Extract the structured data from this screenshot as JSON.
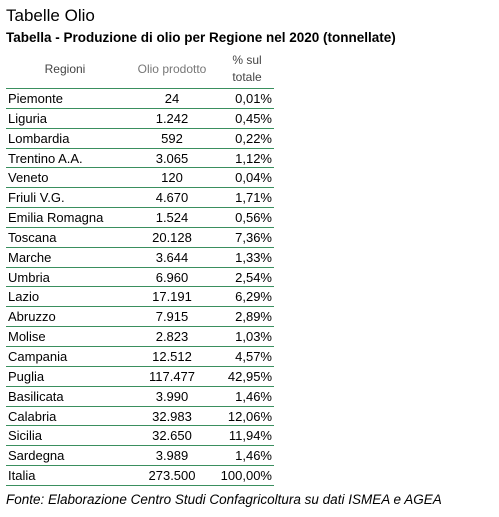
{
  "page_title": "Tabelle Olio",
  "table_caption": "Tabella - Produzione di olio per Regione nel 2020 (tonnellate)",
  "headers": {
    "region": "Regioni",
    "oil": "Olio prodotto",
    "pct_line1": "% sul",
    "pct_line2": "totale"
  },
  "rows": [
    {
      "region": "Piemonte",
      "oil": "24",
      "pct": "0,01%"
    },
    {
      "region": "Liguria",
      "oil": "1.242",
      "pct": "0,45%"
    },
    {
      "region": "Lombardia",
      "oil": "592",
      "pct": "0,22%"
    },
    {
      "region": "Trentino A.A.",
      "oil": "3.065",
      "pct": "1,12%"
    },
    {
      "region": "Veneto",
      "oil": "120",
      "pct": "0,04%"
    },
    {
      "region": "Friuli V.G.",
      "oil": "4.670",
      "pct": "1,71%"
    },
    {
      "region": "Emilia Romagna",
      "oil": "1.524",
      "pct": "0,56%"
    },
    {
      "region": "Toscana",
      "oil": "20.128",
      "pct": "7,36%"
    },
    {
      "region": "Marche",
      "oil": "3.644",
      "pct": "1,33%"
    },
    {
      "region": "Umbria",
      "oil": "6.960",
      "pct": "2,54%"
    },
    {
      "region": "Lazio",
      "oil": "17.191",
      "pct": "6,29%"
    },
    {
      "region": "Abruzzo",
      "oil": "7.915",
      "pct": "2,89%"
    },
    {
      "region": "Molise",
      "oil": "2.823",
      "pct": "1,03%"
    },
    {
      "region": "Campania",
      "oil": "12.512",
      "pct": "4,57%"
    },
    {
      "region": "Puglia",
      "oil": "117.477",
      "pct": "42,95%"
    },
    {
      "region": "Basilicata",
      "oil": "3.990",
      "pct": "1,46%"
    },
    {
      "region": "Calabria",
      "oil": "32.983",
      "pct": "12,06%"
    },
    {
      "region": "Sicilia",
      "oil": "32.650",
      "pct": "11,94%"
    },
    {
      "region": "Sardegna",
      "oil": "3.989",
      "pct": "1,46%"
    },
    {
      "region": "Italia",
      "oil": "273.500",
      "pct": "100,00%"
    }
  ],
  "footer": "Fonte: Elaborazione Centro Studi Confagricoltura su dati ISMEA e AGEA",
  "colors": {
    "rule": "#3a8f5e"
  }
}
